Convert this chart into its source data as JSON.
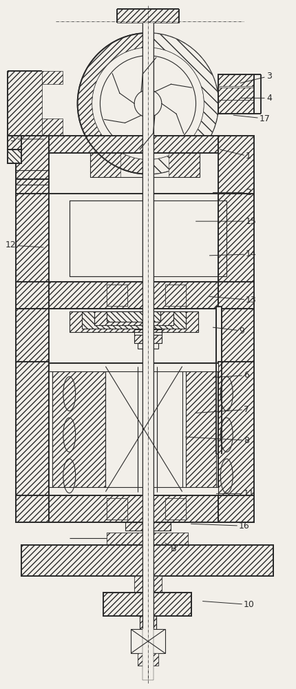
{
  "bg_color": "#f2efe9",
  "line_color": "#2a2a2a",
  "figsize": [
    4.3,
    10.0
  ],
  "dpi": 100,
  "annotations": [
    [
      "3",
      350,
      118,
      388,
      108
    ],
    [
      "4",
      350,
      140,
      388,
      140
    ],
    [
      "17",
      340,
      165,
      378,
      170
    ],
    [
      "1",
      320,
      215,
      358,
      225
    ],
    [
      "2",
      310,
      278,
      358,
      278
    ],
    [
      "15",
      285,
      320,
      358,
      320
    ],
    [
      "14",
      305,
      370,
      358,
      368
    ],
    [
      "12",
      62,
      358,
      22,
      355
    ],
    [
      "13",
      305,
      430,
      358,
      435
    ],
    [
      "9",
      310,
      475,
      348,
      480
    ],
    [
      "6",
      310,
      548,
      355,
      545
    ],
    [
      "7",
      285,
      600,
      355,
      595
    ],
    [
      "8",
      270,
      635,
      355,
      640
    ],
    [
      "11",
      315,
      718,
      355,
      718
    ],
    [
      "16",
      278,
      762,
      348,
      765
    ],
    [
      "B",
      240,
      790,
      248,
      798
    ],
    [
      "10",
      295,
      875,
      355,
      880
    ],
    [
      "5",
      62,
      200,
      22,
      200
    ]
  ]
}
